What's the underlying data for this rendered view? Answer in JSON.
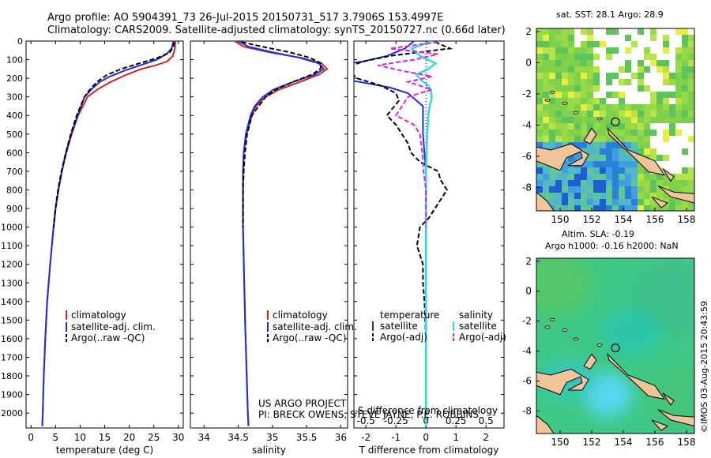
{
  "header": {
    "title_line1": "Argo profile: AO 5904391_73 26-Jul-2015 20150731_517 3.7906S 153.4997E",
    "title_line2": "Climatology: CARS2009. Satellite-adjusted climatology: synTS_20150727.nc (0.66d later)"
  },
  "credits": {
    "line1": "US ARGO PROJECT",
    "line2": "PI: BRECK OWENS, STEVE JAYNE, P.E. ROBBINS",
    "side": "©IMOS 03-Aug-2015 20:43:59"
  },
  "colors": {
    "climatology": "#d42020",
    "satellite": "#1a2fd6",
    "argo": "#000000",
    "sat_salinity": "#34d8e0",
    "argo_salinity": "#e020d8",
    "land": "#f2c49a"
  },
  "chart_data": [
    {
      "id": "temperature",
      "type": "line",
      "xlabel": "temperature (deg C)",
      "ylabel": "",
      "xlim": [
        -1,
        31
      ],
      "ylim": [
        0,
        2080
      ],
      "xticks": [
        0,
        5,
        10,
        15,
        20,
        25,
        30
      ],
      "yticks": [
        0,
        100,
        200,
        300,
        400,
        500,
        600,
        700,
        800,
        900,
        1000,
        1100,
        1200,
        1300,
        1400,
        1500,
        1600,
        1700,
        1800,
        1900,
        2000
      ],
      "legend": [
        "climatology",
        "satellite-adj. clim.",
        "Argo(..raw -QC)"
      ],
      "series": [
        {
          "name": "climatology",
          "depth": [
            0,
            40,
            80,
            110,
            130,
            150,
            180,
            220,
            260,
            300,
            400,
            500,
            600,
            700,
            800,
            900,
            1000,
            1200,
            1400,
            1600,
            1800,
            2000,
            2070
          ],
          "values": [
            29.4,
            29.3,
            28.9,
            27.7,
            25.4,
            22.5,
            19.5,
            16.2,
            13.5,
            11.5,
            9.6,
            8.3,
            7.2,
            6.3,
            5.6,
            5.0,
            4.6,
            3.9,
            3.3,
            2.9,
            2.6,
            2.4,
            2.3
          ]
        },
        {
          "name": "satellite-adj. clim.",
          "depth": [
            0,
            40,
            70,
            100,
            130,
            160,
            190,
            220,
            260,
            300,
            400,
            500,
            600,
            700,
            800,
            900,
            1000,
            1200,
            1400,
            1600,
            1800,
            2000,
            2070
          ],
          "values": [
            29.0,
            28.6,
            27.6,
            25.6,
            22.3,
            18.9,
            16.1,
            14.0,
            12.3,
            10.9,
            9.5,
            8.2,
            7.1,
            6.3,
            5.6,
            5.0,
            4.6,
            3.9,
            3.3,
            2.9,
            2.6,
            2.4,
            2.3
          ]
        },
        {
          "name": "Argo(..raw -QC)",
          "depth": [
            5,
            30,
            60,
            90,
            120,
            150,
            180,
            210,
            240,
            270,
            300,
            350,
            400,
            500,
            600,
            700,
            800,
            900,
            1000
          ],
          "values": [
            29.1,
            29.0,
            28.3,
            25.8,
            22.0,
            18.4,
            15.6,
            13.9,
            12.7,
            11.7,
            10.9,
            10.1,
            9.3,
            8.1,
            7.1,
            6.2,
            5.5,
            5.0,
            4.6
          ]
        }
      ]
    },
    {
      "id": "salinity",
      "type": "line",
      "xlabel": "salinity",
      "xlim": [
        33.8,
        36.1
      ],
      "ylim": [
        0,
        2080
      ],
      "xticks": [
        34,
        34.5,
        35,
        35.5,
        36
      ],
      "legend": [
        "climatology",
        "satellite-adj. clim.",
        "Argo(..raw -QC)"
      ],
      "series": [
        {
          "name": "climatology",
          "depth": [
            0,
            30,
            60,
            90,
            120,
            150,
            180,
            220,
            260,
            300,
            350,
            400,
            500,
            600,
            700,
            800,
            1000,
            1500,
            2000,
            2070
          ],
          "values": [
            34.45,
            34.58,
            34.95,
            35.42,
            35.72,
            35.8,
            35.68,
            35.4,
            35.1,
            34.9,
            34.76,
            34.7,
            34.62,
            34.58,
            34.57,
            34.57,
            34.57,
            34.6,
            34.64,
            34.65
          ]
        },
        {
          "name": "satellite-adj. clim.",
          "depth": [
            0,
            30,
            60,
            90,
            120,
            150,
            180,
            220,
            260,
            300,
            350,
            400,
            500,
            600,
            700,
            800,
            1000,
            1500,
            2000,
            2070
          ],
          "values": [
            34.5,
            34.65,
            35.0,
            35.4,
            35.68,
            35.75,
            35.62,
            35.3,
            35.02,
            34.86,
            34.74,
            34.68,
            34.61,
            34.58,
            34.57,
            34.57,
            34.57,
            34.6,
            34.64,
            34.65
          ]
        },
        {
          "name": "Argo(..raw -QC)",
          "depth": [
            5,
            30,
            60,
            90,
            120,
            150,
            180,
            220,
            260,
            300,
            350,
            400,
            500,
            600,
            700,
            800,
            900,
            1000
          ],
          "values": [
            34.55,
            34.85,
            35.25,
            35.55,
            35.72,
            35.7,
            35.58,
            35.3,
            35.05,
            34.9,
            34.8,
            34.7,
            34.63,
            34.6,
            34.58,
            34.57,
            34.57,
            34.57
          ]
        }
      ]
    },
    {
      "id": "difference",
      "type": "line",
      "xlabel": "T difference from climatology",
      "xlabel2": "S difference from climatology",
      "xlim": [
        -2.4,
        2.6
      ],
      "ylim": [
        0,
        2080
      ],
      "xticks": [
        -2,
        -1,
        0,
        1,
        2
      ],
      "xticks2": [
        -0.5,
        -0.25,
        0,
        0.25,
        0.5
      ],
      "xtick2_labels": [
        "-0.5",
        "-0.25",
        "0",
        "0.25",
        "0.5"
      ],
      "legend_headers": [
        "temperature",
        "salinity"
      ],
      "legend": [
        "satellite",
        "Argo(-adj)",
        "satellite",
        "Argo(-adj)"
      ],
      "series": [
        {
          "name": "temperature satellite",
          "depth": [
            0,
            40,
            80,
            110,
            130,
            160,
            190,
            220,
            250,
            280,
            350,
            500,
            700,
            900,
            1200,
            1600,
            2000,
            2070
          ],
          "values": [
            -0.4,
            -0.7,
            -1.3,
            -2.1,
            -3.1,
            -3.6,
            -3.4,
            -2.2,
            -1.2,
            -0.6,
            -0.1,
            -0.1,
            0,
            0,
            0,
            0,
            0,
            0
          ]
        },
        {
          "name": "temperature Argo",
          "depth": [
            5,
            40,
            80,
            110,
            140,
            170,
            200,
            240,
            280,
            320,
            360,
            400,
            450,
            500,
            550,
            600,
            650,
            700,
            750,
            800,
            850,
            900,
            950,
            1000,
            1100,
            1200,
            1300,
            1400,
            1600,
            1800,
            2000
          ],
          "values": [
            0.3,
            0.8,
            -1.2,
            -2.1,
            -2.6,
            -2.5,
            -2.3,
            -1.5,
            -1.0,
            -0.9,
            -1.1,
            -1.3,
            -1.0,
            -0.8,
            -0.6,
            -0.5,
            -0.2,
            0.4,
            0.5,
            0.7,
            0.5,
            0.3,
            0.1,
            -0.2,
            -0.3,
            -0.1,
            -0.1,
            -0.05,
            0,
            0,
            0
          ]
        },
        {
          "name": "salinity satellite",
          "depth": [
            0,
            40,
            80,
            120,
            150,
            180,
            210,
            240,
            270,
            300,
            350,
            400,
            500,
            700,
            1000,
            1500,
            2000,
            2070
          ],
          "values": [
            0.05,
            -0.12,
            -0.05,
            0.08,
            0.02,
            -0.08,
            -0.04,
            0.02,
            0.04,
            0.05,
            0.03,
            0.02,
            0.01,
            0,
            0,
            0,
            0,
            0
          ]
        },
        {
          "name": "salinity Argo",
          "depth": [
            5,
            40,
            70,
            100,
            130,
            160,
            190,
            220,
            260,
            300,
            350,
            400,
            450,
            500,
            600,
            700,
            800,
            900,
            1000
          ],
          "values": [
            0.1,
            -0.3,
            0.1,
            -0.1,
            -0.4,
            -0.2,
            0.05,
            -0.15,
            0.05,
            -0.15,
            -0.2,
            -0.25,
            -0.1,
            -0.05,
            -0.03,
            -0.02,
            0,
            0,
            0
          ]
        }
      ]
    },
    {
      "id": "sst_map",
      "type": "heatmap",
      "title": "sat. SST: 28.1  Argo: 28.9",
      "xlim": [
        148.5,
        158.5
      ],
      "ylim": [
        -9.5,
        2.2
      ],
      "xticks": [
        150,
        152,
        154,
        156,
        158
      ],
      "yticks": [
        2,
        0,
        -2,
        -4,
        -6,
        -8
      ],
      "float_position": [
        153.5,
        -3.79
      ]
    },
    {
      "id": "sla_map",
      "type": "heatmap",
      "title": "Altim. SLA: -0.19",
      "title2": "Argo h1000: -0.16 h2000: NaN",
      "xlim": [
        148.5,
        158.5
      ],
      "ylim": [
        -9.5,
        2.2
      ],
      "xticks": [
        150,
        152,
        154,
        156,
        158
      ],
      "yticks": [
        2,
        0,
        -2,
        -4,
        -6,
        -8
      ],
      "float_position": [
        153.5,
        -3.79
      ]
    }
  ]
}
